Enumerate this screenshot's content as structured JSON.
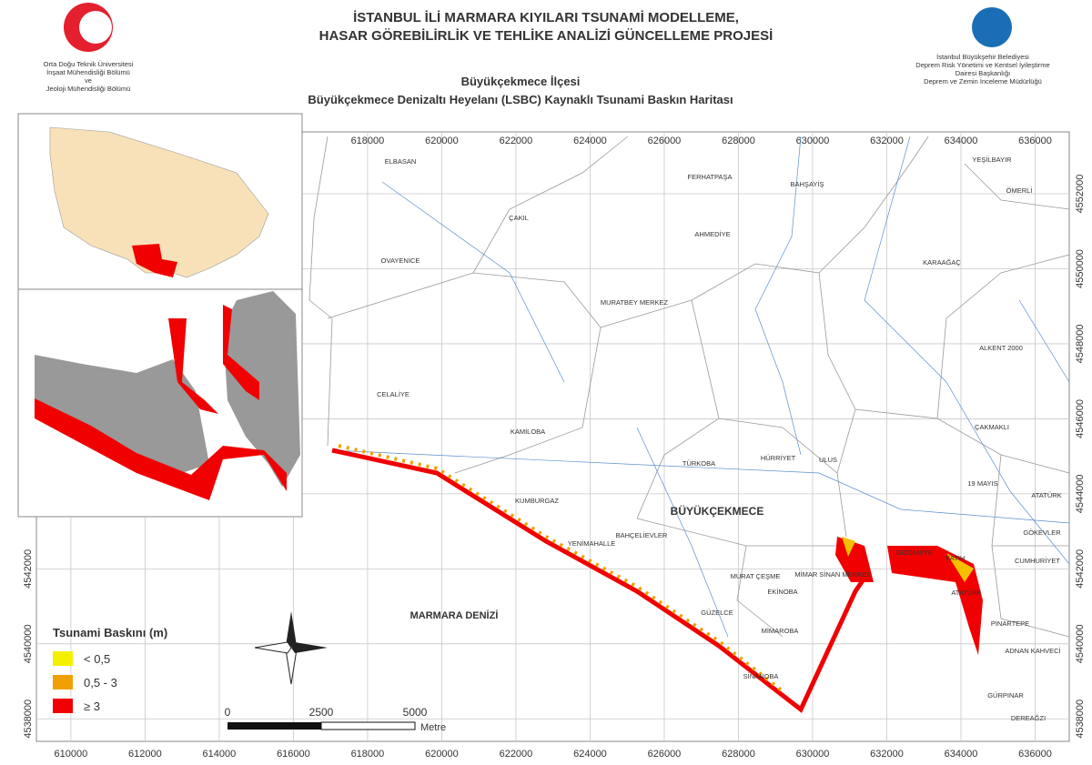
{
  "header": {
    "title": [
      "İSTANBUL İLİ MARMARA KIYILARI TSUNAMİ MODELLEME,",
      "HASAR GÖREBİLİRLİK VE TEHLİKE ANALİZİ GÜNCELLEME PROJESİ"
    ],
    "subtitle": [
      "Büyükçekmece İlçesi",
      "Büyükçekmece Denizaltı Heyelanı (LSBC) Kaynaklı Tsunami Baskın Haritası"
    ],
    "left_org": [
      "Orta Doğu Teknik Üniversitesi",
      "İnşaat Mühendisliği Bölümü",
      "ve",
      "Jeoloji Mühendisliği Bölümü"
    ],
    "right_org": [
      "İstanbul Büyükşehir Belediyesi",
      "Deprem Risk Yönetimi ve Kentsel İyileştirme",
      "Dairesi Başkanlığı",
      "Deprem ve Zemin İnceleme Müdürlüğü"
    ]
  },
  "map": {
    "xlim": [
      609070,
      636920
    ],
    "ylim": [
      4537400,
      4553650
    ],
    "xticks": [
      610000,
      612000,
      614000,
      616000,
      618000,
      620000,
      622000,
      624000,
      626000,
      628000,
      630000,
      632000,
      634000,
      636000
    ],
    "yticks": [
      4538000,
      4540000,
      4542000,
      4544000,
      4546000,
      4548000,
      4550000,
      4552000
    ],
    "places": [
      "ELBASAN",
      "YEŞİLBAYIR",
      "FERHATPAŞA",
      "BAHŞAYİŞ",
      "ÖMERLİ",
      "ÇAKIL",
      "AHMEDİYE",
      "OVAYENİCE",
      "KARAAĞAÇ",
      "MURATBEY MERKEZ",
      "ALKENT 2000",
      "CELALİYE",
      "ÇAKMAKLI",
      "KAMİLOBA",
      "HÜRRİYET",
      "ULUS",
      "TÜRKOBA",
      "19 MAYIS",
      "ATATÜRK",
      "KUMBURGAZ",
      "GÖKEVLER",
      "BAHÇELİEVLER",
      "YENİMAHALLE",
      "DIZDARİYE",
      "FATİH",
      "CUMHURİYET",
      "MURAT ÇEŞME",
      "MİMAR SİNAN MERKEZ",
      "ATATÜRK",
      "EKİNOBA",
      "GÜZELCE",
      "PINARTEPE",
      "MİMAROBA",
      "ADNAN KAHVECİ",
      "SİNANOBA",
      "GÜRPINAR",
      "DEREAĞZI"
    ],
    "district": "BÜYÜKÇEKMECE",
    "sea": "MARMARA DENİZİ"
  },
  "legend": {
    "title": "Tsunami Baskını (m)",
    "items": [
      {
        "label": "< 0,5",
        "color": "#f5f000"
      },
      {
        "label": "0,5 - 3",
        "color": "#f0a000"
      },
      {
        "label": "≥ 3",
        "color": "#f00000"
      }
    ]
  },
  "scale_bar": {
    "ticks": [
      0,
      2500,
      5000
    ],
    "unit": "Metre"
  }
}
